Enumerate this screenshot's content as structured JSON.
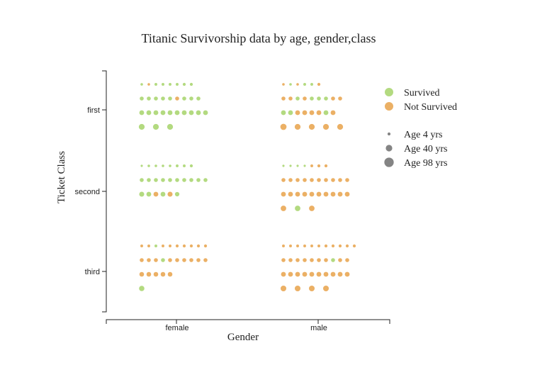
{
  "chart_data": {
    "type": "scatter",
    "title": "Titanic Survivorship data by age, gender,class",
    "xlabel": "Gender",
    "ylabel": "Ticket Class",
    "x_categories": [
      "female",
      "male"
    ],
    "y_categories": [
      "first",
      "second",
      "third"
    ],
    "colors": {
      "survived": "#a6d46a",
      "not_survived": "#e8a24a"
    },
    "legend": {
      "placement": "right",
      "status": [
        {
          "label": "Survived",
          "key": "survived"
        },
        {
          "label": "Not Survived",
          "key": "not_survived"
        }
      ],
      "size": [
        {
          "label": "Age 4 yrs",
          "age": 4
        },
        {
          "label": "Age 40 yrs",
          "age": 40
        },
        {
          "label": "Age 98 yrs",
          "age": 98
        }
      ]
    },
    "groups": [
      {
        "gender": "female",
        "class": "first",
        "rows": [
          [
            {
              "s": 1,
              "a": 2
            },
            {
              "s": 0,
              "a": 2
            },
            {
              "s": 1,
              "a": 3
            },
            {
              "s": 1,
              "a": 3
            },
            {
              "s": 1,
              "a": 3
            },
            {
              "s": 1,
              "a": 3
            },
            {
              "s": 1,
              "a": 4
            },
            {
              "s": 1,
              "a": 4
            }
          ],
          [
            {
              "s": 1,
              "a": 10
            },
            {
              "s": 1,
              "a": 10
            },
            {
              "s": 1,
              "a": 10
            },
            {
              "s": 1,
              "a": 10
            },
            {
              "s": 1,
              "a": 10
            },
            {
              "s": 0,
              "a": 10
            },
            {
              "s": 1,
              "a": 10
            },
            {
              "s": 1,
              "a": 10
            },
            {
              "s": 1,
              "a": 10
            }
          ],
          [
            {
              "s": 1,
              "a": 18
            },
            {
              "s": 1,
              "a": 18
            },
            {
              "s": 1,
              "a": 18
            },
            {
              "s": 1,
              "a": 18
            },
            {
              "s": 1,
              "a": 18
            },
            {
              "s": 1,
              "a": 18
            },
            {
              "s": 1,
              "a": 18
            },
            {
              "s": 1,
              "a": 18
            },
            {
              "s": 1,
              "a": 18
            },
            {
              "s": 1,
              "a": 18
            }
          ],
          [
            {
              "s": 1,
              "a": 30
            },
            {
              "s": 1,
              "a": 30
            },
            {
              "s": 1,
              "a": 30
            }
          ]
        ]
      },
      {
        "gender": "male",
        "class": "first",
        "rows": [
          [
            {
              "s": 0,
              "a": 2
            },
            {
              "s": 1,
              "a": 2
            },
            {
              "s": 0,
              "a": 2
            },
            {
              "s": 1,
              "a": 3
            },
            {
              "s": 1,
              "a": 3
            },
            {
              "s": 0,
              "a": 4
            }
          ],
          [
            {
              "s": 0,
              "a": 10
            },
            {
              "s": 0,
              "a": 10
            },
            {
              "s": 1,
              "a": 10
            },
            {
              "s": 0,
              "a": 10
            },
            {
              "s": 1,
              "a": 10
            },
            {
              "s": 1,
              "a": 10
            },
            {
              "s": 1,
              "a": 10
            },
            {
              "s": 0,
              "a": 10
            },
            {
              "s": 0,
              "a": 10
            }
          ],
          [
            {
              "s": 1,
              "a": 18
            },
            {
              "s": 1,
              "a": 18
            },
            {
              "s": 0,
              "a": 18
            },
            {
              "s": 0,
              "a": 18
            },
            {
              "s": 0,
              "a": 18
            },
            {
              "s": 0,
              "a": 18
            },
            {
              "s": 1,
              "a": 18
            },
            {
              "s": 0,
              "a": 18
            }
          ],
          [
            {
              "s": 0,
              "a": 35
            },
            {
              "s": 0,
              "a": 30
            },
            {
              "s": 0,
              "a": 30
            },
            {
              "s": 0,
              "a": 30
            },
            {
              "s": 0,
              "a": 30
            }
          ]
        ]
      },
      {
        "gender": "female",
        "class": "second",
        "rows": [
          [
            {
              "s": 1,
              "a": 1
            },
            {
              "s": 1,
              "a": 2
            },
            {
              "s": 1,
              "a": 2
            },
            {
              "s": 1,
              "a": 2
            },
            {
              "s": 1,
              "a": 2
            },
            {
              "s": 1,
              "a": 3
            },
            {
              "s": 1,
              "a": 3
            },
            {
              "s": 1,
              "a": 4
            }
          ],
          [
            {
              "s": 1,
              "a": 10
            },
            {
              "s": 1,
              "a": 10
            },
            {
              "s": 1,
              "a": 10
            },
            {
              "s": 1,
              "a": 10
            },
            {
              "s": 1,
              "a": 10
            },
            {
              "s": 1,
              "a": 10
            },
            {
              "s": 1,
              "a": 10
            },
            {
              "s": 1,
              "a": 10
            },
            {
              "s": 1,
              "a": 10
            },
            {
              "s": 1,
              "a": 10
            }
          ],
          [
            {
              "s": 1,
              "a": 20
            },
            {
              "s": 1,
              "a": 18
            },
            {
              "s": 0,
              "a": 18
            },
            {
              "s": 1,
              "a": 18
            },
            {
              "s": 0,
              "a": 20
            },
            {
              "s": 1,
              "a": 14
            }
          ]
        ]
      },
      {
        "gender": "male",
        "class": "second",
        "rows": [
          [
            {
              "s": 1,
              "a": 1
            },
            {
              "s": 1,
              "a": 1
            },
            {
              "s": 1,
              "a": 1
            },
            {
              "s": 1,
              "a": 1
            },
            {
              "s": 0,
              "a": 3
            },
            {
              "s": 0,
              "a": 4
            },
            {
              "s": 0,
              "a": 4
            }
          ],
          [
            {
              "s": 0,
              "a": 10
            },
            {
              "s": 0,
              "a": 10
            },
            {
              "s": 0,
              "a": 10
            },
            {
              "s": 0,
              "a": 10
            },
            {
              "s": 0,
              "a": 10
            },
            {
              "s": 0,
              "a": 10
            },
            {
              "s": 0,
              "a": 10
            },
            {
              "s": 0,
              "a": 10
            },
            {
              "s": 0,
              "a": 10
            },
            {
              "s": 0,
              "a": 10
            }
          ],
          [
            {
              "s": 0,
              "a": 18
            },
            {
              "s": 0,
              "a": 18
            },
            {
              "s": 0,
              "a": 18
            },
            {
              "s": 0,
              "a": 18
            },
            {
              "s": 0,
              "a": 18
            },
            {
              "s": 0,
              "a": 18
            },
            {
              "s": 0,
              "a": 18
            },
            {
              "s": 0,
              "a": 18
            },
            {
              "s": 0,
              "a": 18
            },
            {
              "s": 0,
              "a": 18
            }
          ],
          [
            {
              "s": 0,
              "a": 26
            },
            {
              "s": 1,
              "a": 26
            },
            {
              "s": 0,
              "a": 26
            }
          ]
        ]
      },
      {
        "gender": "female",
        "class": "third",
        "rows": [
          [
            {
              "s": 0,
              "a": 3
            },
            {
              "s": 0,
              "a": 3
            },
            {
              "s": 1,
              "a": 3
            },
            {
              "s": 0,
              "a": 3
            },
            {
              "s": 0,
              "a": 3
            },
            {
              "s": 0,
              "a": 4
            },
            {
              "s": 0,
              "a": 4
            },
            {
              "s": 0,
              "a": 4
            },
            {
              "s": 0,
              "a": 4
            },
            {
              "s": 0,
              "a": 4
            }
          ],
          [
            {
              "s": 0,
              "a": 10
            },
            {
              "s": 0,
              "a": 10
            },
            {
              "s": 0,
              "a": 10
            },
            {
              "s": 1,
              "a": 10
            },
            {
              "s": 0,
              "a": 10
            },
            {
              "s": 0,
              "a": 10
            },
            {
              "s": 0,
              "a": 10
            },
            {
              "s": 0,
              "a": 10
            },
            {
              "s": 0,
              "a": 10
            },
            {
              "s": 0,
              "a": 10
            }
          ],
          [
            {
              "s": 0,
              "a": 16
            },
            {
              "s": 0,
              "a": 16
            },
            {
              "s": 0,
              "a": 16
            },
            {
              "s": 0,
              "a": 16
            },
            {
              "s": 0,
              "a": 16
            }
          ],
          [
            {
              "s": 1,
              "a": 24
            }
          ]
        ]
      },
      {
        "gender": "male",
        "class": "third",
        "rows": [
          [
            {
              "s": 0,
              "a": 3
            },
            {
              "s": 0,
              "a": 3
            },
            {
              "s": 0,
              "a": 3
            },
            {
              "s": 0,
              "a": 3
            },
            {
              "s": 0,
              "a": 3
            },
            {
              "s": 0,
              "a": 3
            },
            {
              "s": 0,
              "a": 4
            },
            {
              "s": 0,
              "a": 4
            },
            {
              "s": 0,
              "a": 4
            },
            {
              "s": 0,
              "a": 4
            },
            {
              "s": 0,
              "a": 4
            }
          ],
          [
            {
              "s": 0,
              "a": 10
            },
            {
              "s": 0,
              "a": 10
            },
            {
              "s": 0,
              "a": 10
            },
            {
              "s": 0,
              "a": 10
            },
            {
              "s": 0,
              "a": 10
            },
            {
              "s": 0,
              "a": 10
            },
            {
              "s": 0,
              "a": 10
            },
            {
              "s": 1,
              "a": 10
            },
            {
              "s": 0,
              "a": 10
            },
            {
              "s": 0,
              "a": 10
            }
          ],
          [
            {
              "s": 0,
              "a": 18
            },
            {
              "s": 0,
              "a": 18
            },
            {
              "s": 0,
              "a": 18
            },
            {
              "s": 0,
              "a": 18
            },
            {
              "s": 0,
              "a": 18
            },
            {
              "s": 0,
              "a": 18
            },
            {
              "s": 0,
              "a": 18
            },
            {
              "s": 0,
              "a": 18
            },
            {
              "s": 0,
              "a": 18
            },
            {
              "s": 0,
              "a": 18
            }
          ],
          [
            {
              "s": 0,
              "a": 28
            },
            {
              "s": 0,
              "a": 28
            },
            {
              "s": 0,
              "a": 28
            },
            {
              "s": 0,
              "a": 28
            }
          ]
        ]
      }
    ]
  }
}
